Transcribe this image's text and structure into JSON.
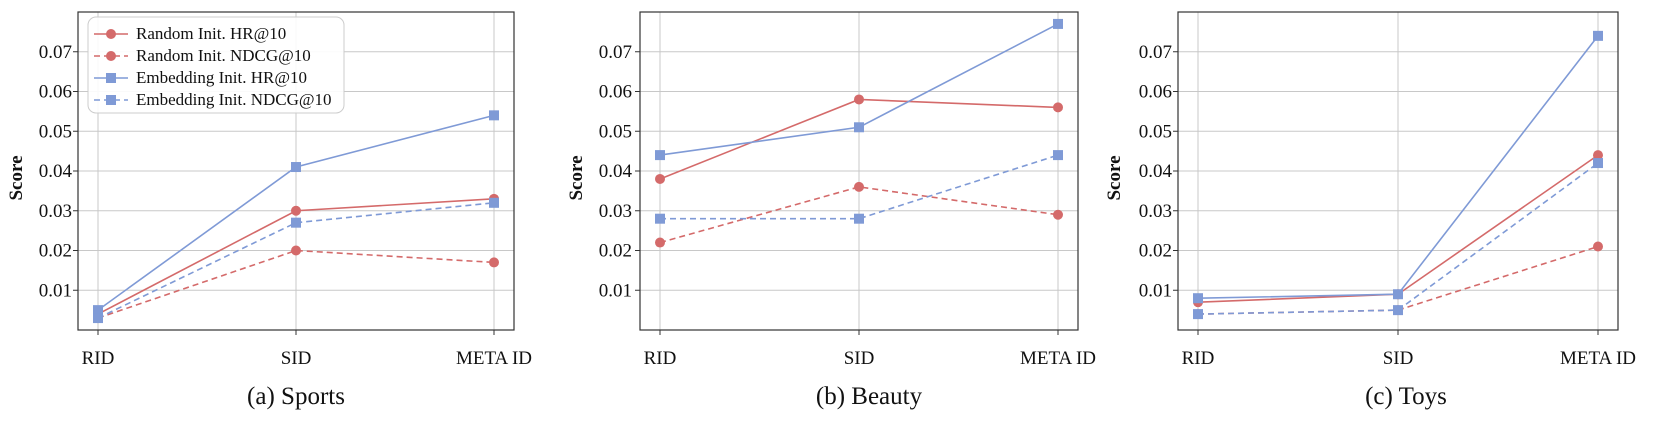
{
  "colors": {
    "random": "#d46a6a",
    "embedding": "#7f9ad6",
    "grid": "#c8c8c8",
    "frame": "#333333"
  },
  "legend": {
    "entries": [
      {
        "label": "Random Init. HR@10",
        "color": "#d46a6a",
        "dash": false,
        "marker": "circle"
      },
      {
        "label": "Random Init. NDCG@10",
        "color": "#d46a6a",
        "dash": true,
        "marker": "circle"
      },
      {
        "label": "Embedding Init. HR@10",
        "color": "#7f9ad6",
        "dash": false,
        "marker": "square"
      },
      {
        "label": "Embedding Init. NDCG@10",
        "color": "#7f9ad6",
        "dash": true,
        "marker": "square"
      }
    ]
  },
  "chart_data": [
    {
      "type": "line",
      "title": "(a) Sports",
      "xlabel": "",
      "ylabel": "Score",
      "categories": [
        "RID",
        "SID",
        "META ID"
      ],
      "ylim": [
        0.0,
        0.08
      ],
      "yticks": [
        0.01,
        0.02,
        0.03,
        0.04,
        0.05,
        0.06,
        0.07
      ],
      "ytick_labels": [
        "0.01",
        "0.02",
        "0.03",
        "0.04",
        "0.05",
        "0.06",
        "0.07"
      ],
      "series": [
        {
          "name": "Random Init. HR@10",
          "values": [
            0.004,
            0.03,
            0.033
          ]
        },
        {
          "name": "Random Init. NDCG@10",
          "values": [
            0.003,
            0.02,
            0.017
          ]
        },
        {
          "name": "Embedding Init. HR@10",
          "values": [
            0.005,
            0.041,
            0.054
          ]
        },
        {
          "name": "Embedding Init. NDCG@10",
          "values": [
            0.003,
            0.027,
            0.032
          ]
        }
      ]
    },
    {
      "type": "line",
      "title": "(b) Beauty",
      "xlabel": "",
      "ylabel": "Score",
      "categories": [
        "RID",
        "SID",
        "META ID"
      ],
      "ylim": [
        0.0,
        0.08
      ],
      "yticks": [
        0.01,
        0.02,
        0.03,
        0.04,
        0.05,
        0.06,
        0.07
      ],
      "ytick_labels": [
        "0.01",
        "0.02",
        "0.03",
        "0.04",
        "0.05",
        "0.06",
        "0.07"
      ],
      "series": [
        {
          "name": "Random Init. HR@10",
          "values": [
            0.038,
            0.058,
            0.056
          ]
        },
        {
          "name": "Random Init. NDCG@10",
          "values": [
            0.022,
            0.036,
            0.029
          ]
        },
        {
          "name": "Embedding Init. HR@10",
          "values": [
            0.044,
            0.051,
            0.077
          ]
        },
        {
          "name": "Embedding Init. NDCG@10",
          "values": [
            0.028,
            0.028,
            0.044
          ]
        }
      ]
    },
    {
      "type": "line",
      "title": "(c) Toys",
      "xlabel": "",
      "ylabel": "Score",
      "categories": [
        "RID",
        "SID",
        "META ID"
      ],
      "ylim": [
        0.0,
        0.08
      ],
      "yticks": [
        0.01,
        0.02,
        0.03,
        0.04,
        0.05,
        0.06,
        0.07
      ],
      "ytick_labels": [
        "0.01",
        "0.02",
        "0.03",
        "0.04",
        "0.05",
        "0.06",
        "0.07"
      ],
      "series": [
        {
          "name": "Random Init. HR@10",
          "values": [
            0.007,
            0.009,
            0.044
          ]
        },
        {
          "name": "Random Init. NDCG@10",
          "values": [
            0.004,
            0.005,
            0.021
          ]
        },
        {
          "name": "Embedding Init. HR@10",
          "values": [
            0.008,
            0.009,
            0.074
          ]
        },
        {
          "name": "Embedding Init. NDCG@10",
          "values": [
            0.004,
            0.005,
            0.042
          ]
        }
      ]
    }
  ]
}
